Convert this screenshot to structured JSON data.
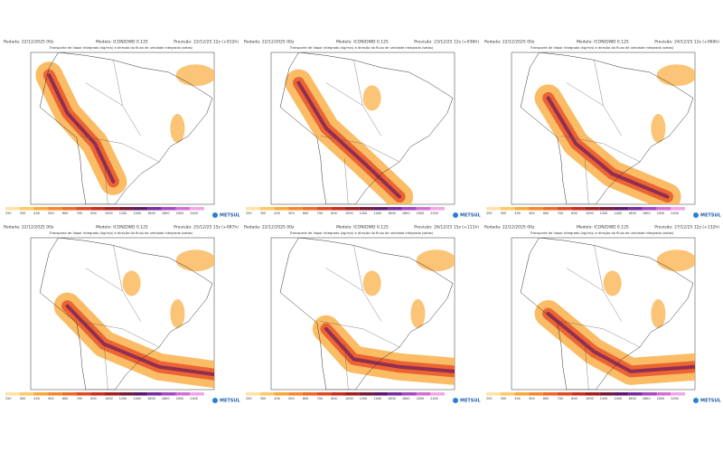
{
  "panels": [
    {
      "run": "Rodada: 22/12/2025 00z",
      "model": "Modelo: ICON/DWD 0.125",
      "forecast": "Previsão: 22/12/25 12z (+012h)",
      "title": "Transporte de Vapor Integrado (kg/m/s) e direção do fluxo de umidade integrado (setas)"
    },
    {
      "run": "Rodada: 22/12/2025 00z",
      "model": "Modelo: ICON/DWD 0.125",
      "forecast": "Previsão: 23/12/25 12z (+036h)",
      "title": "Transporte de Vapor Integrado (kg/m/s) e direção do fluxo de umidade integrado (setas)"
    },
    {
      "run": "Rodada: 22/12/2025 00z",
      "model": "Modelo: ICON/DWD 0.125",
      "forecast": "Previsão: 24/12/25 12z (+060h)",
      "title": "Transporte de Vapor Integrado (kg/m/s) e direção do fluxo de umidade integrado (setas)"
    },
    {
      "run": "Rodada: 22/12/2025 00z",
      "model": "Modelo: ICON/DWD 0.125",
      "forecast": "Previsão: 25/12/25 15z (+087h)",
      "title": "Transporte de Vapor Integrado (kg/m/s) e direção do fluxo de umidade integrado (setas)"
    },
    {
      "run": "Rodada: 22/12/2025 00z",
      "model": "Modelo: ICON/DWD 0.125",
      "forecast": "Previsão: 26/12/25 15z (+111h)",
      "title": "Transporte de Vapor Integrado (kg/m/s) e direção do fluxo de umidade integrado (setas)"
    },
    {
      "run": "Rodada: 22/12/2025 00z",
      "model": "Modelo: ICON/DWD 0.125",
      "forecast": "Previsão: 27/12/25 12z (+132h)",
      "title": "Transporte de Vapor Integrado (kg/m/s) e direção do fluxo de umidade integrado (setas)"
    }
  ],
  "colorbar": [
    "250",
    "300",
    "400",
    "500",
    "600",
    "700",
    "800",
    "1000",
    "1200",
    "1400",
    "1600",
    "1800",
    "2000",
    "2400"
  ],
  "logo": "METSUL"
}
